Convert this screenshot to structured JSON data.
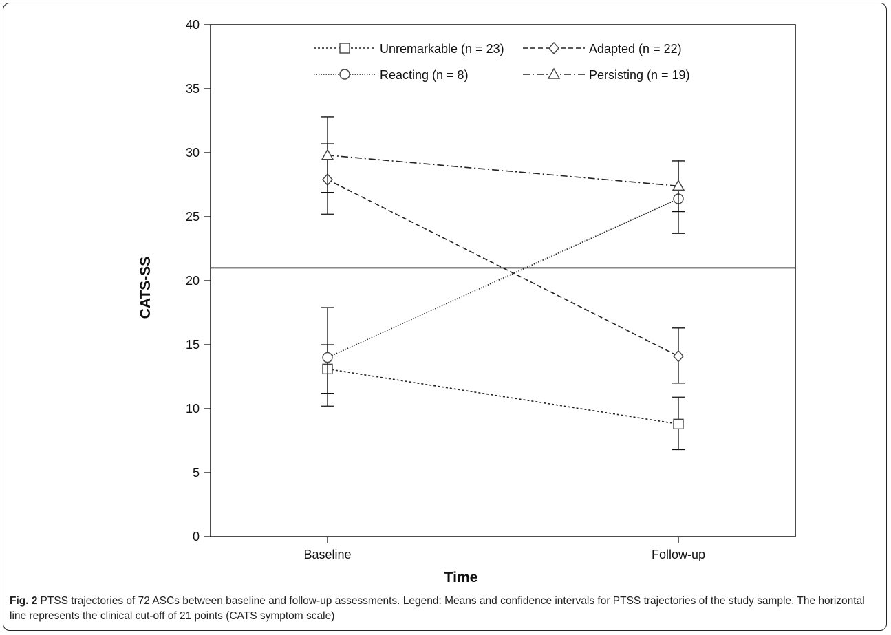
{
  "chart_data": {
    "type": "line",
    "xlabel": "Time",
    "ylabel": "CATS-SS",
    "categories": [
      "Baseline",
      "Follow-up"
    ],
    "ylim": [
      0,
      40
    ],
    "yticks": [
      0,
      5,
      10,
      15,
      20,
      25,
      30,
      35,
      40
    ],
    "grid": false,
    "legend_position": "top",
    "reference_line": {
      "y": 21
    },
    "series": [
      {
        "name": "Unremarkable (n = 23)",
        "marker": "square",
        "dash": "dotted",
        "values": [
          13.1,
          8.8
        ],
        "ci_low": [
          10.2,
          6.8
        ],
        "ci_high": [
          15.0,
          10.9
        ]
      },
      {
        "name": "Adapted (n = 22)",
        "marker": "diamond",
        "dash": "dashed",
        "values": [
          27.9,
          14.1
        ],
        "ci_low": [
          25.2,
          12.0
        ],
        "ci_high": [
          30.7,
          16.3
        ]
      },
      {
        "name": "Reacting (n = 8)",
        "marker": "circle",
        "dash": "fine-dotted",
        "values": [
          14.0,
          26.4
        ],
        "ci_low": [
          11.2,
          23.7
        ],
        "ci_high": [
          17.9,
          29.3
        ]
      },
      {
        "name": "Persisting (n = 19)",
        "marker": "triangle",
        "dash": "dash-dot",
        "values": [
          29.8,
          27.4
        ],
        "ci_low": [
          26.9,
          25.4
        ],
        "ci_high": [
          32.8,
          29.4
        ]
      }
    ]
  },
  "caption": {
    "label": "Fig. 2",
    "text": "PTSS trajectories of 72 ASCs between baseline and follow-up assessments. Legend: Means and confidence intervals for PTSS trajectories of the study sample. The horizontal line represents the clinical cut-off of 21 points (CATS symptom scale)"
  }
}
